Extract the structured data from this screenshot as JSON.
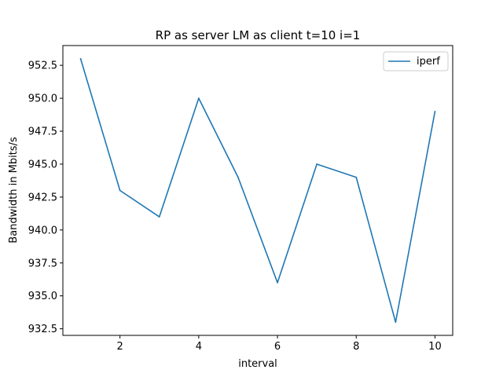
{
  "chart_data": {
    "type": "line",
    "title": "RP as server LM as client t=10 i=1",
    "xlabel": "interval",
    "ylabel": "Bandwidth in Mbits/s",
    "x": [
      1,
      2,
      3,
      4,
      5,
      6,
      7,
      8,
      9,
      10
    ],
    "series": [
      {
        "name": "iperf",
        "color": "#1f77b4",
        "values": [
          953,
          943,
          941,
          950,
          944,
          936,
          945,
          944,
          933,
          949
        ]
      }
    ],
    "xlim": [
      0.55,
      10.45
    ],
    "ylim": [
      932.0,
      954.0
    ],
    "xticks": [
      2,
      4,
      6,
      8,
      10
    ],
    "xtick_labels": [
      "2",
      "4",
      "6",
      "8",
      "10"
    ],
    "yticks": [
      932.5,
      935.0,
      937.5,
      940.0,
      942.5,
      945.0,
      947.5,
      950.0,
      952.5
    ],
    "ytick_labels": [
      "932.5",
      "935.0",
      "937.5",
      "940.0",
      "942.5",
      "945.0",
      "947.5",
      "950.0",
      "952.5"
    ],
    "grid": false,
    "legend_position": "top-right"
  }
}
